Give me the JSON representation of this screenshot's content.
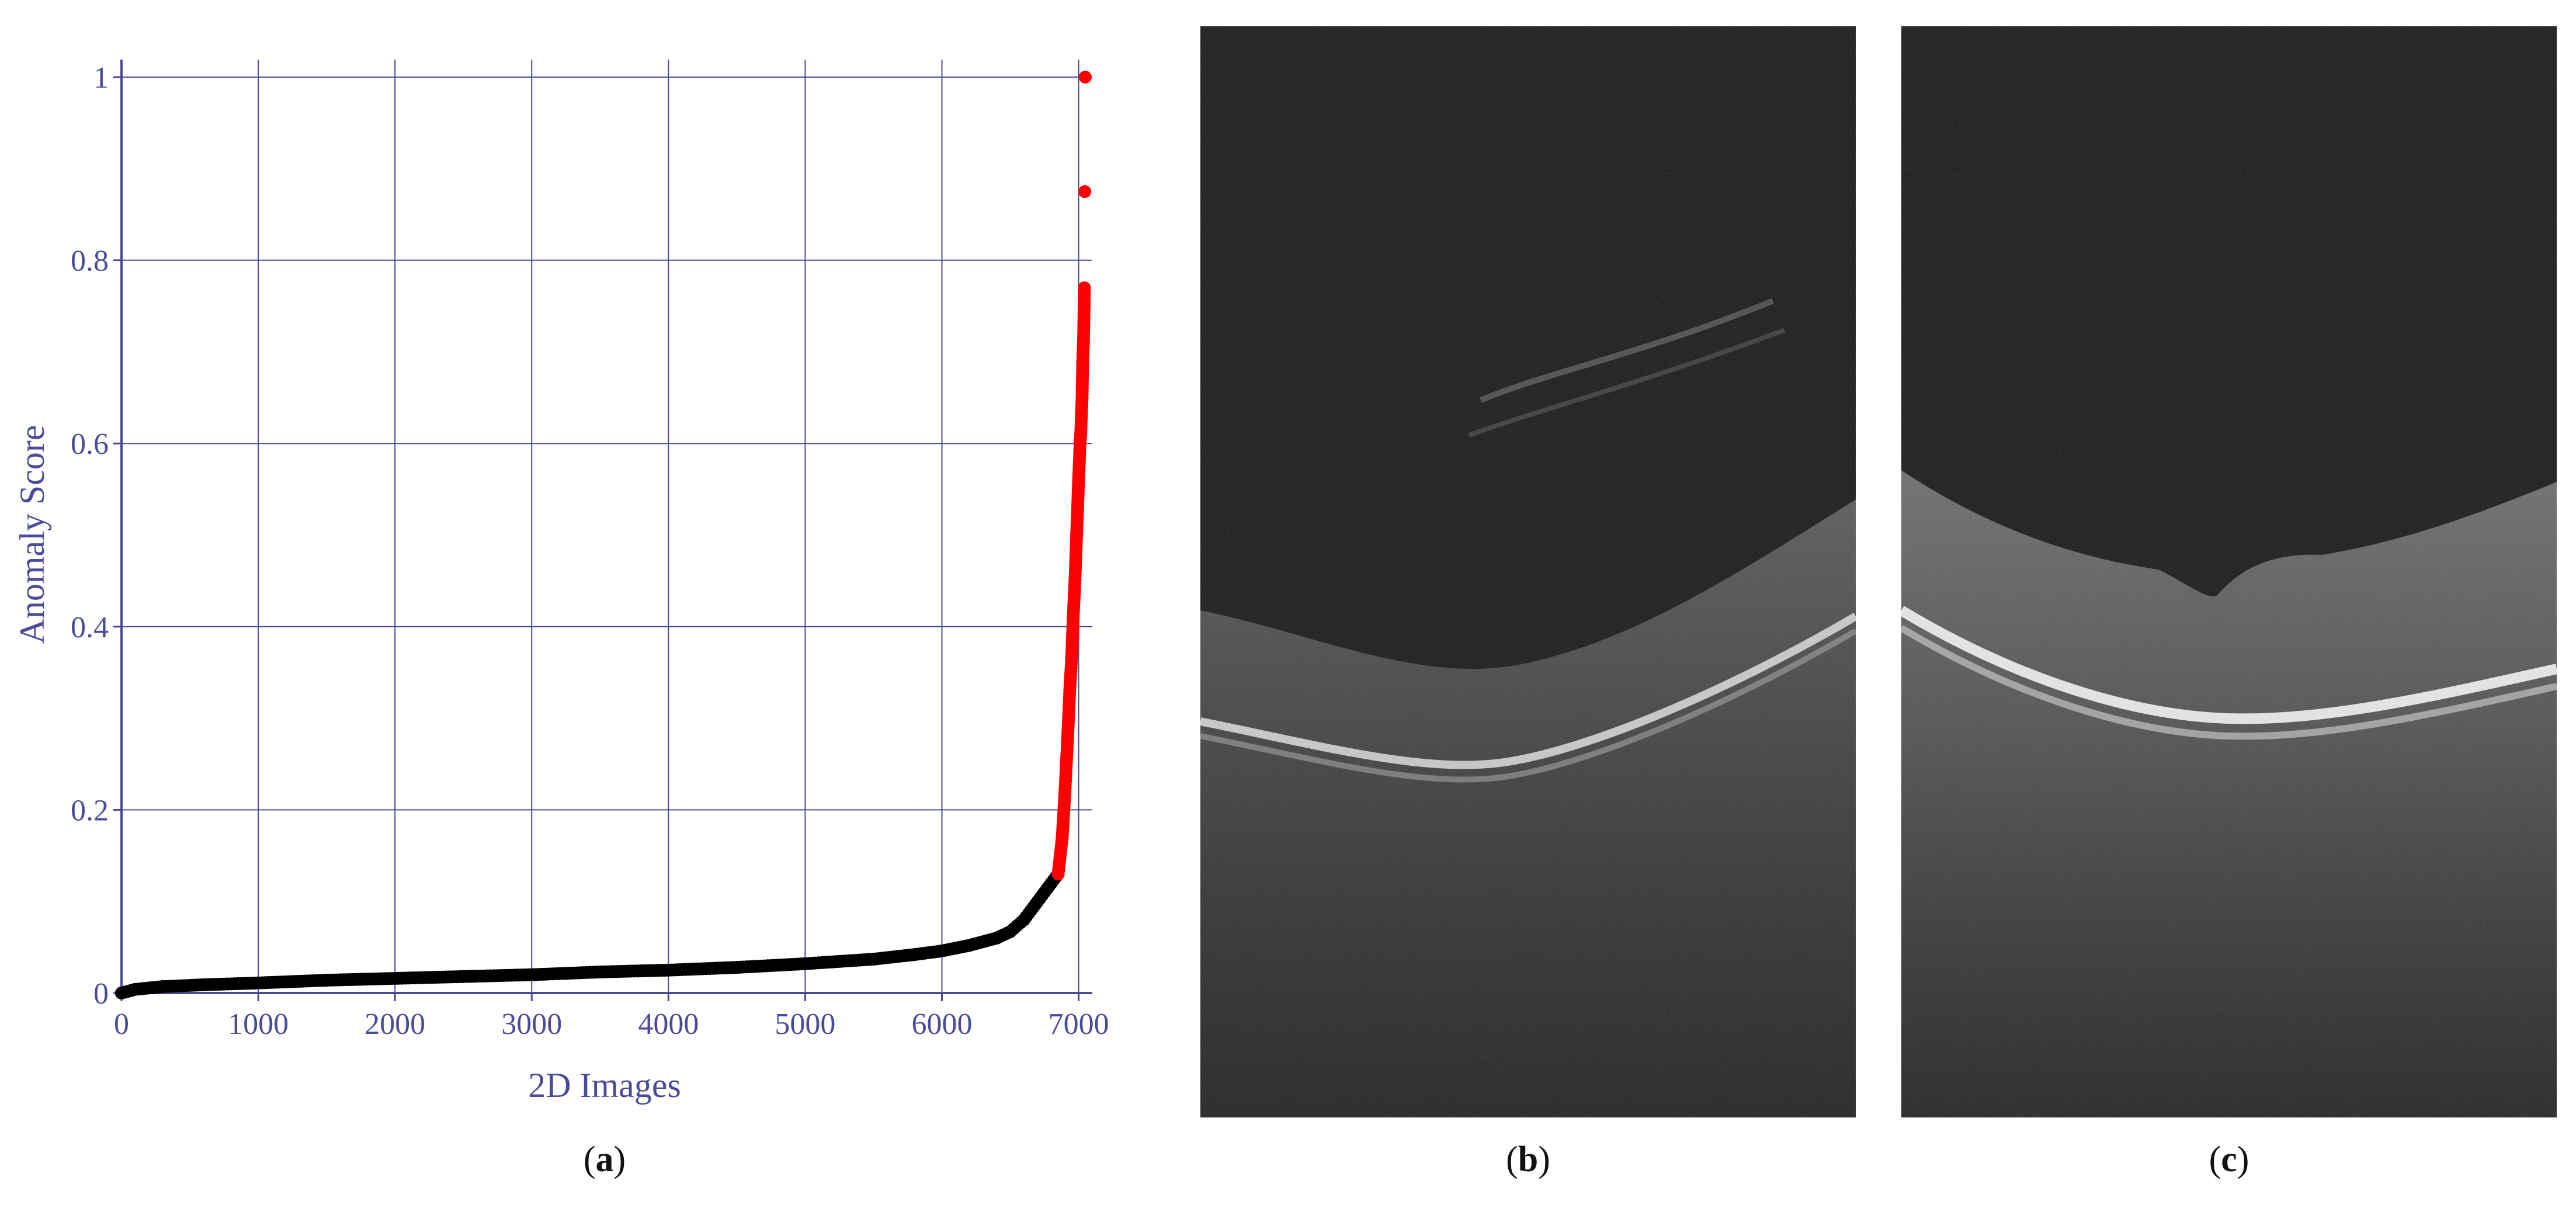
{
  "chart_data": {
    "type": "scatter",
    "xlabel": "2D Images",
    "ylabel": "Anomaly Score",
    "xlim": [
      0,
      7100
    ],
    "ylim": [
      0,
      1.0
    ],
    "x_ticks": [
      0,
      1000,
      2000,
      3000,
      4000,
      5000,
      6000,
      7000
    ],
    "x_tick_labels": [
      "0",
      "1000",
      "2000",
      "3000",
      "4000",
      "5000",
      "6000",
      "7000"
    ],
    "y_ticks": [
      0,
      0.2,
      0.4,
      0.6,
      0.8,
      1.0
    ],
    "y_tick_labels": [
      "0",
      "0.2",
      "0.4",
      "0.6",
      "0.8",
      "1"
    ],
    "grid": true,
    "series": [
      {
        "color": "#000000",
        "x": [
          0,
          100,
          300,
          600,
          1000,
          1500,
          2000,
          2500,
          3000,
          3500,
          4000,
          4500,
          5000,
          5500,
          5800,
          6000,
          6200,
          6400,
          6500,
          6600,
          6700,
          6800,
          6850
        ],
        "y": [
          0.0,
          0.004,
          0.007,
          0.009,
          0.011,
          0.014,
          0.016,
          0.018,
          0.02,
          0.023,
          0.025,
          0.028,
          0.032,
          0.037,
          0.042,
          0.046,
          0.052,
          0.06,
          0.067,
          0.08,
          0.1,
          0.12,
          0.13
        ]
      },
      {
        "color": "#ff0000",
        "x": [
          6850,
          6880,
          6900,
          6920,
          6935,
          6950,
          6960,
          6970,
          6978,
          6985,
          6990,
          6995,
          7000,
          7005,
          7010,
          7015,
          7020,
          7025,
          7030,
          7035,
          7038,
          7040,
          7042,
          7045,
          7048
        ],
        "y": [
          0.13,
          0.17,
          0.22,
          0.28,
          0.33,
          0.37,
          0.41,
          0.44,
          0.47,
          0.5,
          0.52,
          0.54,
          0.56,
          0.58,
          0.6,
          0.61,
          0.63,
          0.65,
          0.69,
          0.71,
          0.73,
          0.75,
          0.77,
          0.875,
          1.0
        ]
      }
    ]
  },
  "captions": {
    "a": "a",
    "b": "b",
    "c": "c"
  }
}
